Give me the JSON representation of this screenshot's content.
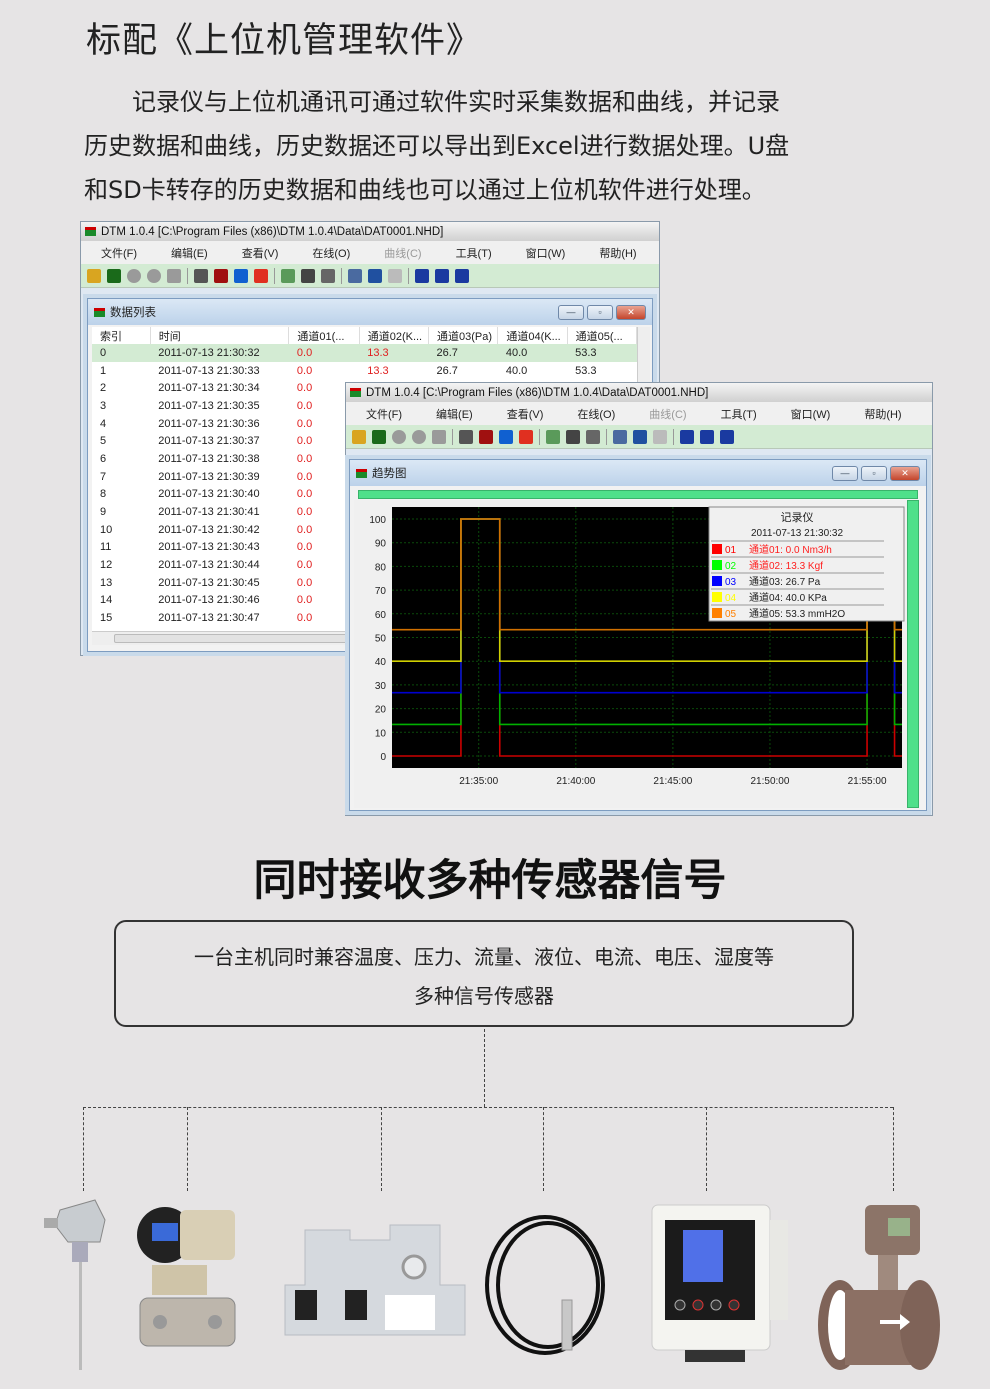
{
  "header": {
    "title": "标配《上位机管理软件》",
    "paragraph": [
      "　　记录仪与上位机通讯可通过软件实时采集数据和曲线，并记录",
      "历史数据和曲线，历史数据还可以导出到Excel进行数据处理。U盘",
      "和SD卡转存的历史数据和曲线也可以通过上位机软件进行处理。"
    ]
  },
  "app": {
    "title": "DTM 1.0.4 [C:\\Program Files (x86)\\DTM 1.0.4\\Data\\DAT0001.NHD]",
    "menu": [
      "文件(F)",
      "编辑(E)",
      "查看(V)",
      "在线(O)",
      "曲线(C)",
      "工具(T)",
      "窗口(W)",
      "帮助(H)"
    ],
    "toolbar": [
      {
        "icon": "open-folder-icon",
        "color": "#d9a520"
      },
      {
        "icon": "chart-icon",
        "color": "#1a6a1a"
      },
      {
        "icon": "record-icon",
        "color": "#9a9a9a"
      },
      {
        "icon": "pause-icon",
        "color": "#9a9a9a"
      },
      {
        "icon": "stop-icon",
        "color": "#9a9a9a"
      },
      {
        "sep": true
      },
      {
        "icon": "table-icon",
        "color": "#555"
      },
      {
        "icon": "sum-icon",
        "color": "#a01010"
      },
      {
        "icon": "info-icon",
        "color": "#1060d0"
      },
      {
        "icon": "pie-icon",
        "color": "#e03020"
      },
      {
        "sep": true
      },
      {
        "icon": "export-icon",
        "color": "#5a9a5a"
      },
      {
        "icon": "print-icon",
        "color": "#444"
      },
      {
        "icon": "print-preview-icon",
        "color": "#666"
      },
      {
        "sep": true
      },
      {
        "icon": "copy-icon",
        "color": "#4a6aa0"
      },
      {
        "icon": "zoom-icon",
        "color": "#2050a0"
      },
      {
        "icon": "zoom-disabled-icon",
        "color": "#bbb"
      },
      {
        "sep": true
      },
      {
        "icon": "cascade-icon",
        "color": "#1a3aa0"
      },
      {
        "icon": "tile-horizontal-icon",
        "color": "#1a3aa0"
      },
      {
        "icon": "tile-vertical-icon",
        "color": "#1a3aa0"
      }
    ]
  },
  "data_window": {
    "title": "数据列表",
    "columns": [
      "索引",
      "时间",
      "通道01(...",
      "通道02(K...",
      "通道03(Pa)",
      "通道04(K...",
      "通道05(..."
    ],
    "rows": [
      [
        "0",
        "2011-07-13 21:30:32",
        "0.0",
        "13.3",
        "26.7",
        "40.0",
        "53.3"
      ],
      [
        "1",
        "2011-07-13 21:30:33",
        "0.0",
        "13.3",
        "26.7",
        "40.0",
        "53.3"
      ],
      [
        "2",
        "2011-07-13 21:30:34",
        "0.0"
      ],
      [
        "3",
        "2011-07-13 21:30:35",
        "0.0"
      ],
      [
        "4",
        "2011-07-13 21:30:36",
        "0.0"
      ],
      [
        "5",
        "2011-07-13 21:30:37",
        "0.0"
      ],
      [
        "6",
        "2011-07-13 21:30:38",
        "0.0"
      ],
      [
        "7",
        "2011-07-13 21:30:39",
        "0.0"
      ],
      [
        "8",
        "2011-07-13 21:30:40",
        "0.0"
      ],
      [
        "9",
        "2011-07-13 21:30:41",
        "0.0"
      ],
      [
        "10",
        "2011-07-13 21:30:42",
        "0.0"
      ],
      [
        "11",
        "2011-07-13 21:30:43",
        "0.0"
      ],
      [
        "12",
        "2011-07-13 21:30:44",
        "0.0"
      ],
      [
        "13",
        "2011-07-13 21:30:45",
        "0.0"
      ],
      [
        "14",
        "2011-07-13 21:30:46",
        "0.0"
      ],
      [
        "15",
        "2011-07-13 21:30:47",
        "0.0"
      ]
    ]
  },
  "trend_window": {
    "title": "趋势图"
  },
  "chart_data": {
    "type": "line",
    "step": true,
    "xlim": [
      "21:30:32",
      "21:56:48"
    ],
    "ylim": [
      0,
      100
    ],
    "grid": true,
    "background": "#000000",
    "yticks": [
      "0",
      "10",
      "20",
      "30",
      "40",
      "50",
      "60",
      "70",
      "80",
      "90",
      "100"
    ],
    "xticks": [
      "21:35:00",
      "21:40:00",
      "21:45:00",
      "21:50:00",
      "21:55:00"
    ],
    "legend": {
      "title": "记录仪",
      "time": "2011-07-13 21:30:32",
      "placement": "top-right"
    },
    "series": [
      {
        "id": "01",
        "label": "通道01: 0.0 Nm3/h",
        "color": "#cc0000",
        "legend_color": "#ff0000",
        "text_color": "#ff2020",
        "x": [
          "21:30:32",
          "21:34:05",
          "21:34:05",
          "21:36:05",
          "21:36:05",
          "21:55:00",
          "21:55:00",
          "21:56:25",
          "21:56:25",
          "21:56:48"
        ],
        "y": [
          0,
          0,
          100,
          100,
          0,
          0,
          100,
          100,
          0,
          0
        ]
      },
      {
        "id": "02",
        "label": "通道02: 13.3 Kgf",
        "color": "#00b000",
        "legend_color": "#00ff00",
        "text_color": "#ff2020",
        "x": [
          "21:30:32",
          "21:34:05",
          "21:34:05",
          "21:36:05",
          "21:36:05",
          "21:55:00",
          "21:55:00",
          "21:56:25",
          "21:56:25",
          "21:56:48"
        ],
        "y": [
          13.3,
          13.3,
          100,
          100,
          13.3,
          13.3,
          100,
          100,
          13.3,
          13.3
        ]
      },
      {
        "id": "03",
        "label": "通道03: 26.7 Pa",
        "color": "#0000d0",
        "legend_color": "#0000ff",
        "text_color": "#222222",
        "x": [
          "21:30:32",
          "21:34:05",
          "21:34:05",
          "21:36:05",
          "21:36:05",
          "21:55:00",
          "21:55:00",
          "21:56:25",
          "21:56:25",
          "21:56:48"
        ],
        "y": [
          26.7,
          26.7,
          100,
          100,
          26.7,
          26.7,
          100,
          100,
          26.7,
          26.7
        ]
      },
      {
        "id": "04",
        "label": "通道04: 40.0 KPa",
        "color": "#d0d000",
        "legend_color": "#ffff00",
        "text_color": "#222222",
        "x": [
          "21:30:32",
          "21:34:05",
          "21:34:05",
          "21:36:05",
          "21:36:05",
          "21:55:00",
          "21:55:00",
          "21:56:25",
          "21:56:25",
          "21:56:48"
        ],
        "y": [
          40,
          40,
          100,
          100,
          40,
          40,
          100,
          100,
          40,
          40
        ]
      },
      {
        "id": "05",
        "label": "通道05: 53.3 mmH2O",
        "color": "#d07000",
        "legend_color": "#ff8000",
        "text_color": "#222222",
        "x": [
          "21:30:32",
          "21:34:05",
          "21:34:05",
          "21:36:05",
          "21:36:05",
          "21:55:00",
          "21:55:00",
          "21:56:25",
          "21:56:25",
          "21:56:48"
        ],
        "y": [
          53.3,
          53.3,
          100,
          100,
          53.3,
          53.3,
          100,
          100,
          53.3,
          53.3
        ]
      }
    ]
  },
  "section2": {
    "title": "同时接收多种传感器信号",
    "box_lines": [
      "一台主机同时兼容温度、压力、流量、液位、电流、电压、湿度等",
      "多种信号传感器"
    ]
  },
  "sensors": [
    "thermocouple",
    "pressure-transmitter",
    "current-transducer",
    "level-sensor",
    "humidity-meter",
    "electromagnetic-flowmeter"
  ],
  "icons": {
    "minimize": "—",
    "maximize": "▫",
    "close": "✕"
  }
}
